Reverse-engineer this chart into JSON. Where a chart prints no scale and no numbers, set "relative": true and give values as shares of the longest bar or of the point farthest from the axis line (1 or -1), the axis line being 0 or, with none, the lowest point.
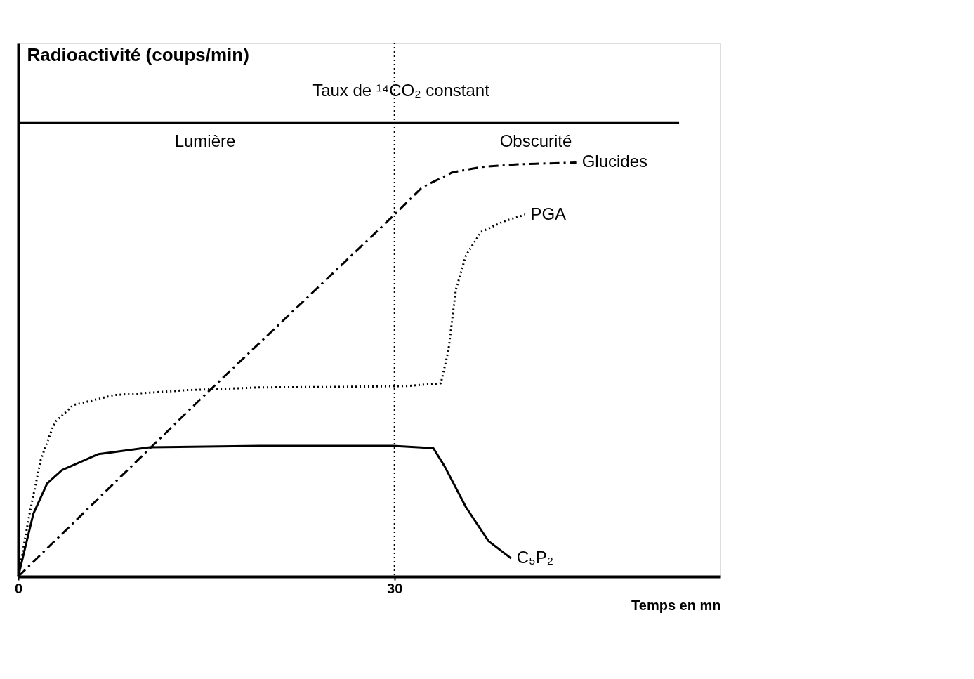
{
  "chart_data": {
    "type": "line",
    "relative": true,
    "xlabel": "Temps en mn",
    "ylabel": "Radioactivité (coups/min)",
    "xlim": [
      0,
      56
    ],
    "xticks": [
      0,
      30
    ],
    "grid": false,
    "legend": false,
    "marker": "none",
    "series": [
      {
        "color": "#000000",
        "line_style": "solid",
        "x": [
          0,
          52.7
        ],
        "values": [
          1,
          1
        ]
      },
      {
        "name": "Glucides",
        "color": "#000000",
        "line_style": "dashed",
        "x": [
          0,
          14.6,
          30,
          32.2,
          34.6,
          36.9,
          39.8,
          44.5
        ],
        "values": [
          0,
          0.393,
          0.798,
          0.858,
          0.891,
          0.903,
          0.909,
          0.913
        ]
      },
      {
        "name": "PGA",
        "color": "#000000",
        "line_style": "dotted",
        "x": [
          0,
          0.9,
          1.8,
          2.9,
          4.4,
          7.6,
          13.5,
          19.3,
          25.2,
          31,
          33.7,
          34.3,
          34.9,
          35.7,
          36.9,
          38.7,
          40.4
        ],
        "values": [
          0,
          0.138,
          0.258,
          0.34,
          0.378,
          0.4,
          0.411,
          0.417,
          0.418,
          0.42,
          0.426,
          0.498,
          0.633,
          0.708,
          0.76,
          0.783,
          0.798
        ]
      },
      {
        "name": "C₅P₂",
        "color": "#000000",
        "line_style": "solid",
        "x": [
          0,
          1.2,
          2.3,
          3.5,
          6.4,
          10.5,
          19.3,
          29.9,
          33.1,
          34,
          35.7,
          37.5,
          39.3
        ],
        "values": [
          0,
          0.138,
          0.205,
          0.235,
          0.27,
          0.285,
          0.288,
          0.288,
          0.283,
          0.243,
          0.153,
          0.078,
          0.04
        ]
      }
    ],
    "ref_lines": [
      {
        "axis": "x",
        "value": 30,
        "line_style": "dotted",
        "color": "#000000"
      }
    ],
    "annotations": [
      "Taux de ¹⁴CO₂ constant",
      "Lumière",
      "Obscurité"
    ]
  }
}
